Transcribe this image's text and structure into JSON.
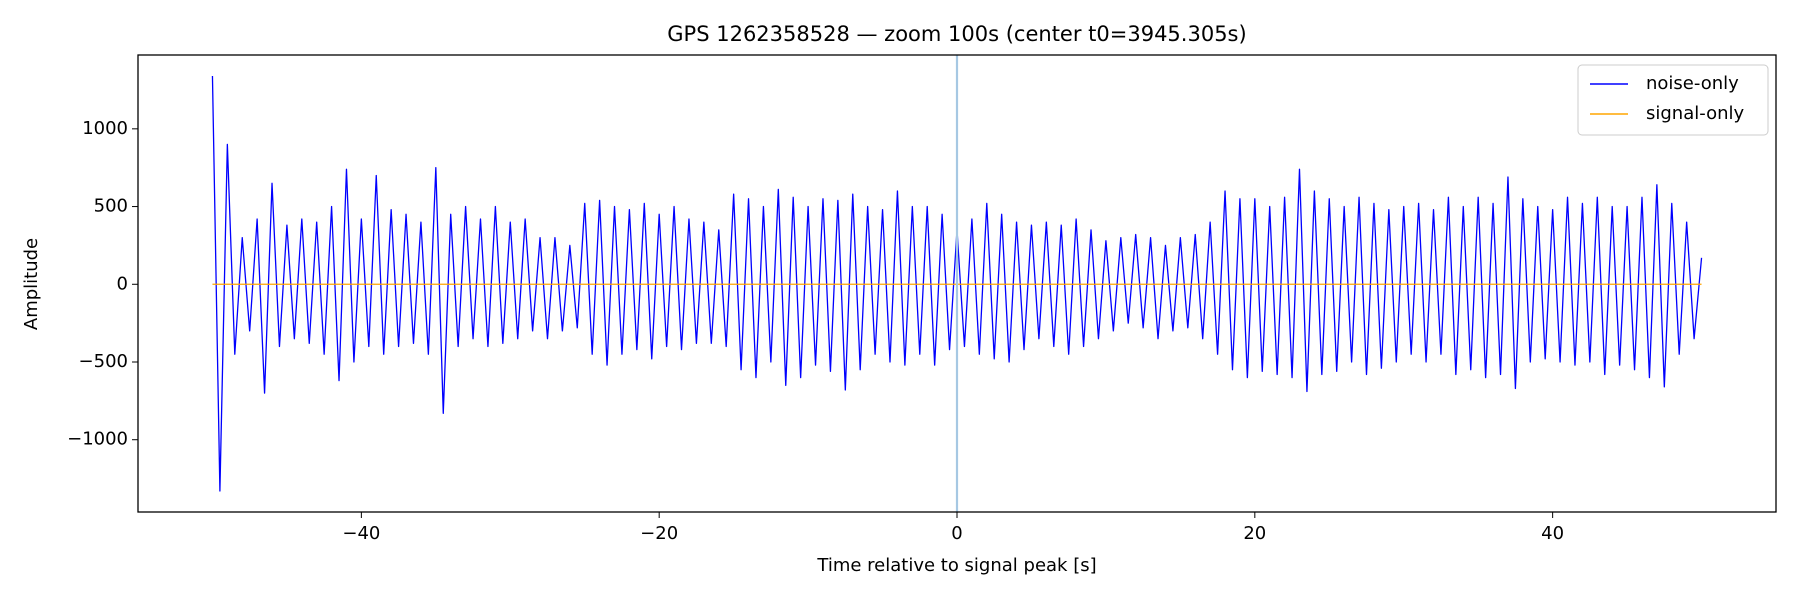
{
  "chart_data": {
    "type": "line",
    "title": "GPS 1262358528 — zoom 100s (center t0=3945.305s)",
    "x_label": "Time relative to signal peak [s]",
    "y_label": "Amplitude",
    "xlim": [
      -55,
      55
    ],
    "ylim": [
      -1465,
      1475
    ],
    "xticks": [
      {
        "value": -40,
        "label": "−40"
      },
      {
        "value": -20,
        "label": "−20"
      },
      0,
      20,
      40
    ],
    "yticks": [
      {
        "value": -1000,
        "label": "−1000"
      },
      {
        "value": -500,
        "label": "−500"
      },
      0,
      500,
      1000
    ],
    "vline": 0,
    "vline_color": "#a6c8e3",
    "legend": "upper right",
    "series": [
      {
        "name": "noise-only",
        "color": "#0000ff",
        "x": [
          -50,
          -49.5,
          -49,
          -48.5,
          -48,
          -47.5,
          -47,
          -46.5,
          -46,
          -45.5,
          -45,
          -44.5,
          -44,
          -43.5,
          -43,
          -42.5,
          -42,
          -41.5,
          -41,
          -40.5,
          -40,
          -39.5,
          -39,
          -38.5,
          -38,
          -37.5,
          -37,
          -36.5,
          -36,
          -35.5,
          -35,
          -34.5,
          -34,
          -33.5,
          -33,
          -32.5,
          -32,
          -31.5,
          -31,
          -30.5,
          -30,
          -29.5,
          -29,
          -28.5,
          -28,
          -27.5,
          -27,
          -26.5,
          -26,
          -25.5,
          -25,
          -24.5,
          -24,
          -23.5,
          -23,
          -22.5,
          -22,
          -21.5,
          -21,
          -20.5,
          -20,
          -19.5,
          -19,
          -18.5,
          -18,
          -17.5,
          -17,
          -16.5,
          -16,
          -15.5,
          -15,
          -14.5,
          -14,
          -13.5,
          -13,
          -12.5,
          -12,
          -11.5,
          -11,
          -10.5,
          -10,
          -9.5,
          -9,
          -8.5,
          -8,
          -7.5,
          -7,
          -6.5,
          -6,
          -5.5,
          -5,
          -4.5,
          -4,
          -3.5,
          -3,
          -2.5,
          -2,
          -1.5,
          -1,
          -0.5,
          0,
          0.5,
          1,
          1.5,
          2,
          2.5,
          3,
          3.5,
          4,
          4.5,
          5,
          5.5,
          6,
          6.5,
          7,
          7.5,
          8,
          8.5,
          9,
          9.5,
          10,
          10.5,
          11,
          11.5,
          12,
          12.5,
          13,
          13.5,
          14,
          14.5,
          15,
          15.5,
          16,
          16.5,
          17,
          17.5,
          18,
          18.5,
          19,
          19.5,
          20,
          20.5,
          21,
          21.5,
          22,
          22.5,
          23,
          23.5,
          24,
          24.5,
          25,
          25.5,
          26,
          26.5,
          27,
          27.5,
          28,
          28.5,
          29,
          29.5,
          30,
          30.5,
          31,
          31.5,
          32,
          32.5,
          33,
          33.5,
          34,
          34.5,
          35,
          35.5,
          36,
          36.5,
          37,
          37.5,
          38,
          38.5,
          39,
          39.5,
          40,
          40.5,
          41,
          41.5,
          42,
          42.5,
          43,
          43.5,
          44,
          44.5,
          45,
          45.5,
          46,
          46.5,
          47,
          47.5,
          48,
          48.5,
          49,
          49.5,
          50
        ],
        "values": [
          1340,
          -1330,
          900,
          -450,
          300,
          -300,
          420,
          -700,
          650,
          -400,
          380,
          -350,
          420,
          -380,
          400,
          -450,
          500,
          -620,
          740,
          -500,
          420,
          -400,
          700,
          -450,
          480,
          -400,
          450,
          -380,
          400,
          -450,
          750,
          -830,
          450,
          -400,
          500,
          -350,
          420,
          -400,
          500,
          -380,
          400,
          -350,
          420,
          -300,
          300,
          -350,
          300,
          -300,
          250,
          -280,
          520,
          -450,
          540,
          -520,
          500,
          -450,
          480,
          -420,
          520,
          -480,
          450,
          -400,
          500,
          -420,
          420,
          -380,
          400,
          -380,
          350,
          -400,
          580,
          -550,
          550,
          -600,
          500,
          -500,
          610,
          -650,
          560,
          -600,
          500,
          -520,
          550,
          -560,
          540,
          -680,
          580,
          -550,
          500,
          -450,
          480,
          -500,
          600,
          -520,
          500,
          -450,
          500,
          -520,
          450,
          -420,
          350,
          -400,
          420,
          -450,
          520,
          -480,
          450,
          -500,
          400,
          -420,
          380,
          -350,
          400,
          -400,
          380,
          -450,
          420,
          -400,
          350,
          -350,
          280,
          -300,
          300,
          -250,
          320,
          -280,
          300,
          -350,
          250,
          -300,
          300,
          -280,
          320,
          -350,
          400,
          -450,
          600,
          -550,
          550,
          -600,
          550,
          -560,
          500,
          -580,
          560,
          -600,
          740,
          -690,
          600,
          -580,
          550,
          -560,
          500,
          -500,
          560,
          -580,
          520,
          -540,
          480,
          -500,
          500,
          -450,
          520,
          -500,
          480,
          -450,
          560,
          -580,
          500,
          -550,
          560,
          -600,
          520,
          -580,
          690,
          -670,
          550,
          -500,
          500,
          -480,
          480,
          -500,
          560,
          -520,
          520,
          -500,
          560,
          -580,
          500,
          -520,
          500,
          -550,
          560,
          -600,
          640,
          -660,
          520,
          -450,
          400,
          -350,
          170
        ]
      },
      {
        "name": "signal-only",
        "color": "#ffa500",
        "x": [
          -50,
          50
        ],
        "values": [
          0,
          0
        ]
      }
    ]
  }
}
